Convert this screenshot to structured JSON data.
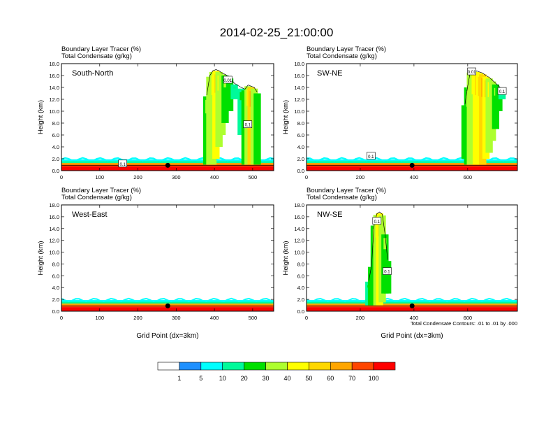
{
  "title": "2014-02-25_21:00:00",
  "chart_data": [
    {
      "type": "heatmap",
      "panel_label": "South-North",
      "line1": "Boundary Layer Tracer    (%)",
      "line2": "Total Condensate    (g/kg)",
      "ylabel": "Height (km)",
      "xlabel": "",
      "xlim": [
        0,
        555
      ],
      "ylim": [
        0,
        18
      ],
      "xticks": [
        "0",
        "100",
        "200",
        "300",
        "400",
        "500"
      ],
      "yticks": [
        "0.0",
        "2.0",
        "4.0",
        "6.0",
        "8.0",
        "10.0",
        "12.0",
        "14.0",
        "16.0",
        "18.0"
      ],
      "marker_x": 278,
      "boxes": [
        {
          "x": 160,
          "y": 1.2,
          "label": "0.1"
        },
        {
          "x": 435,
          "y": 15.3,
          "label": "0.01"
        },
        {
          "x": 487,
          "y": 7.8,
          "label": "0.1"
        }
      ],
      "cloud": [
        {
          "x": 380,
          "y0": 1.0,
          "y1": 12.5,
          "val": 25
        },
        {
          "x": 388,
          "y0": 1.0,
          "y1": 15.8,
          "val": 30
        },
        {
          "x": 396,
          "y0": 1.0,
          "y1": 16.6,
          "val": 35
        },
        {
          "x": 404,
          "y0": 2.0,
          "y1": 16.8,
          "val": 40
        },
        {
          "x": 412,
          "y0": 4.0,
          "y1": 16.6,
          "val": 35
        },
        {
          "x": 420,
          "y0": 6.0,
          "y1": 16.2,
          "val": 30
        },
        {
          "x": 428,
          "y0": 8.0,
          "y1": 16.0,
          "val": 25
        },
        {
          "x": 440,
          "y0": 10.0,
          "y1": 15.5,
          "val": 20
        },
        {
          "x": 452,
          "y0": 12.0,
          "y1": 14.5,
          "val": 15
        },
        {
          "x": 470,
          "y0": 6.0,
          "y1": 13.8,
          "val": 15
        },
        {
          "x": 480,
          "y0": 1.0,
          "y1": 13.5,
          "val": 20
        },
        {
          "x": 488,
          "y0": 1.0,
          "y1": 14.2,
          "val": 35
        },
        {
          "x": 496,
          "y0": 1.0,
          "y1": 14.0,
          "val": 50
        },
        {
          "x": 504,
          "y0": 1.0,
          "y1": 13.8,
          "val": 30
        },
        {
          "x": 512,
          "y0": 1.0,
          "y1": 13.0,
          "val": 20
        }
      ]
    },
    {
      "type": "heatmap",
      "panel_label": "SW-NE",
      "line1": "Boundary Layer Tracer    (%)",
      "line2": "Total Condensate    (g/kg)",
      "ylabel": "Height (km)",
      "xlabel": "",
      "xlim": [
        0,
        785
      ],
      "ylim": [
        0,
        18
      ],
      "xticks": [
        "0",
        "200",
        "400",
        "600"
      ],
      "yticks": [
        "0.0",
        "2.0",
        "4.0",
        "6.0",
        "8.0",
        "10.0",
        "12.0",
        "14.0",
        "16.0",
        "18.0"
      ],
      "marker_x": 393,
      "boxes": [
        {
          "x": 240,
          "y": 2.5,
          "label": "0.1"
        },
        {
          "x": 615,
          "y": 16.7,
          "label": "0.01"
        },
        {
          "x": 728,
          "y": 13.4,
          "label": "0.1"
        }
      ],
      "cloud": [
        {
          "x": 590,
          "y0": 2.0,
          "y1": 11.0,
          "val": 20
        },
        {
          "x": 600,
          "y0": 1.0,
          "y1": 14.0,
          "val": 25
        },
        {
          "x": 610,
          "y0": 1.0,
          "y1": 16.5,
          "val": 30
        },
        {
          "x": 620,
          "y0": 1.0,
          "y1": 16.8,
          "val": 35
        },
        {
          "x": 632,
          "y0": 1.0,
          "y1": 16.6,
          "val": 40
        },
        {
          "x": 644,
          "y0": 1.0,
          "y1": 16.4,
          "val": 45
        },
        {
          "x": 656,
          "y0": 1.0,
          "y1": 16.2,
          "val": 50
        },
        {
          "x": 668,
          "y0": 2.0,
          "y1": 15.8,
          "val": 45
        },
        {
          "x": 680,
          "y0": 3.0,
          "y1": 15.5,
          "val": 35
        },
        {
          "x": 692,
          "y0": 5.0,
          "y1": 15.0,
          "val": 30
        },
        {
          "x": 704,
          "y0": 7.0,
          "y1": 14.5,
          "val": 25
        },
        {
          "x": 716,
          "y0": 10.0,
          "y1": 14.0,
          "val": 20
        },
        {
          "x": 728,
          "y0": 12.0,
          "y1": 13.5,
          "val": 15
        }
      ]
    },
    {
      "type": "heatmap",
      "panel_label": "West-East",
      "line1": "Boundary Layer Tracer    (%)",
      "line2": "Total Condensate    (g/kg)",
      "ylabel": "Height (km)",
      "xlabel": "Grid Point (dx=3km)",
      "xlim": [
        0,
        555
      ],
      "ylim": [
        0,
        18
      ],
      "xticks": [
        "0",
        "100",
        "200",
        "300",
        "400",
        "500"
      ],
      "yticks": [
        "0.0",
        "2.0",
        "4.0",
        "6.0",
        "8.0",
        "10.0",
        "12.0",
        "14.0",
        "16.0",
        "18.0"
      ],
      "marker_x": 278,
      "boxes": [],
      "cloud": []
    },
    {
      "type": "heatmap",
      "panel_label": "NW-SE",
      "line1": "Boundary Layer Tracer    (%)",
      "line2": "Total Condensate    (g/kg)",
      "ylabel": "Height (km)",
      "xlabel": "Grid Point (dx=3km)",
      "note": "Total Condensate Contours: .01 to .01 by .000",
      "xlim": [
        0,
        785
      ],
      "ylim": [
        0,
        18
      ],
      "xticks": [
        "0",
        "200",
        "400",
        "600"
      ],
      "yticks": [
        "0.0",
        "2.0",
        "4.0",
        "6.0",
        "8.0",
        "10.0",
        "12.0",
        "14.0",
        "16.0",
        "18.0"
      ],
      "marker_x": 393,
      "boxes": [
        {
          "x": 262,
          "y": 15.3,
          "label": "0.1"
        },
        {
          "x": 300,
          "y": 6.8,
          "label": "0.1"
        }
      ],
      "cloud": [
        {
          "x": 232,
          "y0": 1.0,
          "y1": 5.0,
          "val": 15
        },
        {
          "x": 242,
          "y0": 1.0,
          "y1": 7.5,
          "val": 20
        },
        {
          "x": 252,
          "y0": 1.0,
          "y1": 14.5,
          "val": 25
        },
        {
          "x": 262,
          "y0": 1.0,
          "y1": 16.3,
          "val": 35
        },
        {
          "x": 272,
          "y0": 1.0,
          "y1": 16.6,
          "val": 40
        },
        {
          "x": 282,
          "y0": 1.5,
          "y1": 16.2,
          "val": 30
        },
        {
          "x": 292,
          "y0": 3.0,
          "y1": 13.0,
          "val": 25
        },
        {
          "x": 302,
          "y0": 3.0,
          "y1": 8.5,
          "val": 20
        }
      ]
    }
  ],
  "colorbar": {
    "levels": [
      "1",
      "5",
      "10",
      "20",
      "30",
      "40",
      "50",
      "60",
      "70",
      "100"
    ],
    "colors": [
      "#ffffff",
      "#1e90ff",
      "#00ffff",
      "#00fa9a",
      "#00e000",
      "#adff2f",
      "#ffff00",
      "#ffd700",
      "#ffa500",
      "#ff4500",
      "#ff0000"
    ]
  }
}
